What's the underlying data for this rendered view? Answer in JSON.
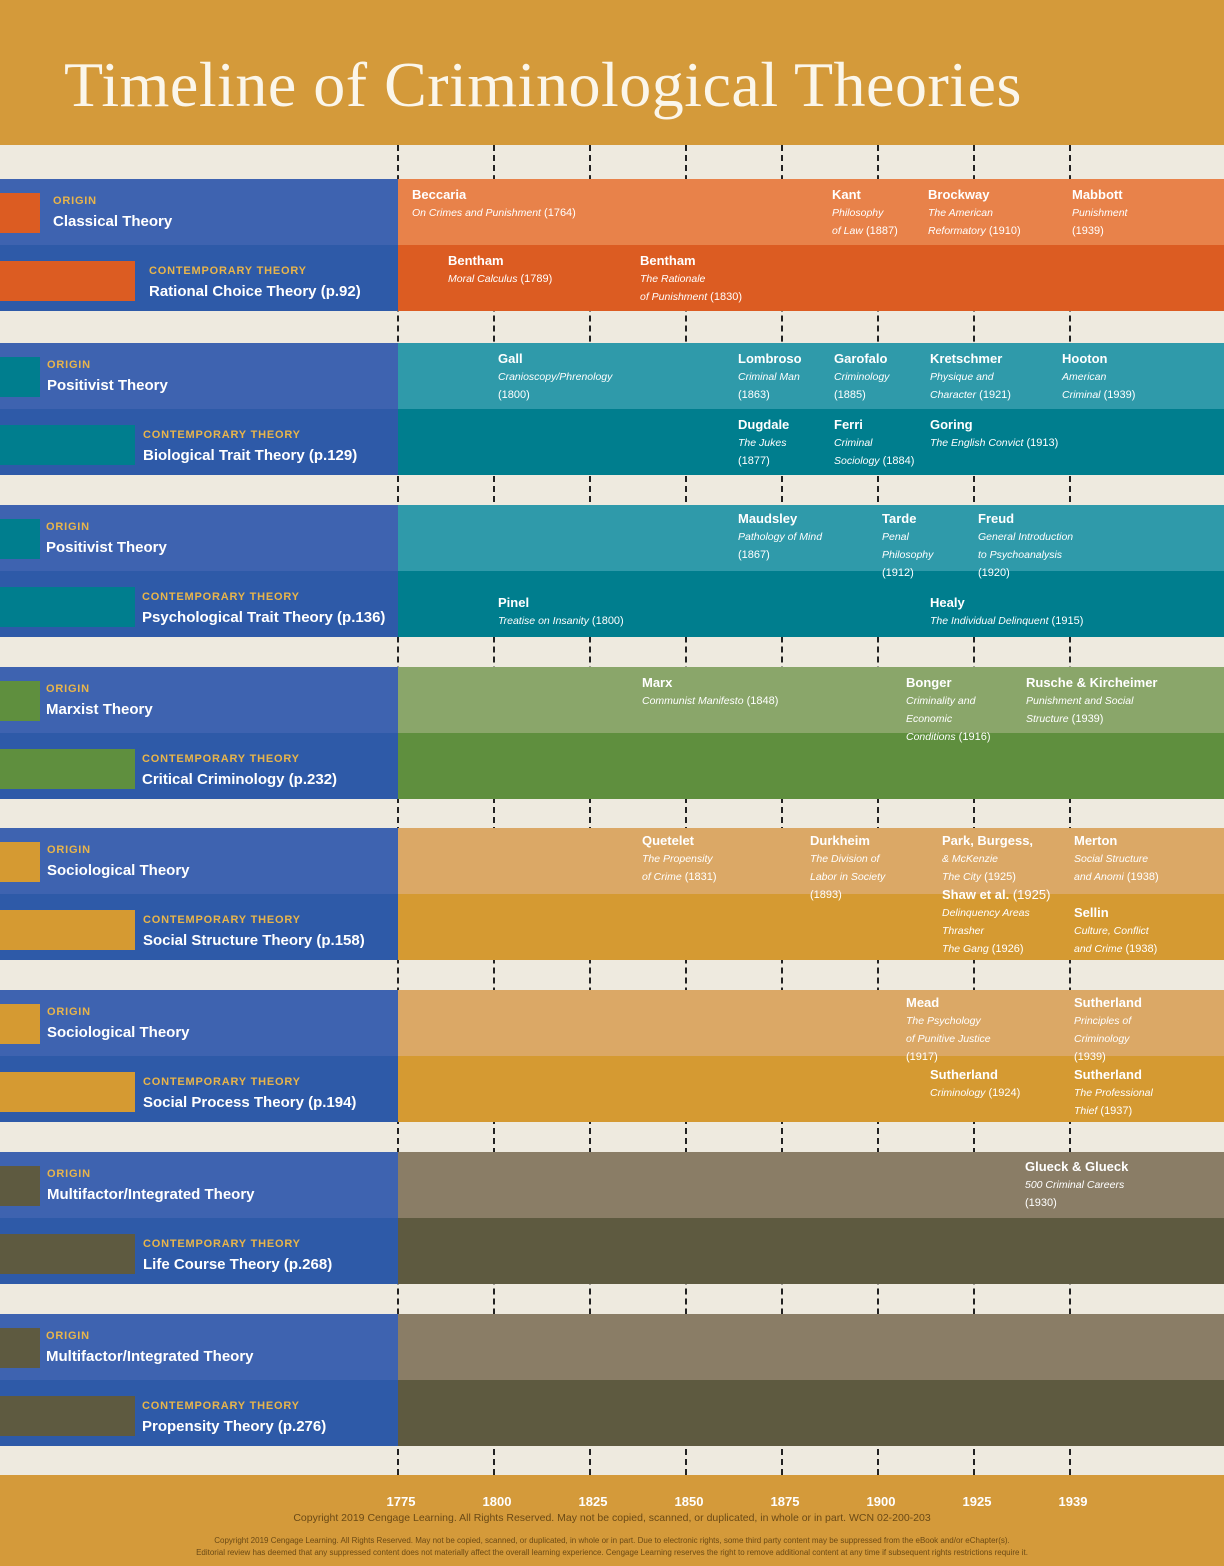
{
  "title": "Timeline of Criminological Theories",
  "axis_labels": [
    "1775",
    "1800",
    "1825",
    "1850",
    "1875",
    "1900",
    "1925",
    "1939"
  ],
  "labels": {
    "origin": "ORIGIN",
    "contemporary": "CONTEMPORARY THEORY"
  },
  "bands": [
    {
      "origin": "Classical Theory",
      "contemporary": "Rational Choice Theory (p.92)",
      "color_origin": "#e8824a",
      "color_contemporary": "#dc5c22",
      "swatch": "#dc5c22",
      "events": [
        {
          "row": "origin",
          "lines": [
            [
              "Beccaria"
            ],
            [
              "On Crimes and Punishment",
              " (1764)"
            ]
          ]
        },
        {
          "row": "origin",
          "lines": [
            [
              "Kant"
            ],
            [
              "Philosophy"
            ],
            [
              "of Law",
              " (1887)"
            ]
          ]
        },
        {
          "row": "origin",
          "lines": [
            [
              "Brockway"
            ],
            [
              "The American"
            ],
            [
              "Reformatory",
              " (1910)"
            ]
          ]
        },
        {
          "row": "origin",
          "lines": [
            [
              "Mabbott"
            ],
            [
              "Punishment"
            ],
            [
              "",
              " (1939)"
            ]
          ]
        },
        {
          "row": "contemporary",
          "lines": [
            [
              "Bentham"
            ],
            [
              "Moral Calculus",
              " (1789)"
            ]
          ]
        },
        {
          "row": "contemporary",
          "lines": [
            [
              "Bentham"
            ],
            [
              "The Rationale"
            ],
            [
              "of Punishment",
              " (1830)"
            ]
          ]
        }
      ]
    },
    {
      "origin": "Positivist Theory",
      "contemporary": "Biological Trait Theory (p.129)",
      "color_origin": "#2f9aaa",
      "color_contemporary": "#007e8e",
      "swatch": "#007e8e",
      "events": [
        {
          "row": "origin",
          "lines": [
            [
              "Gall"
            ],
            [
              "Cranioscopy/Phrenology"
            ],
            [
              "",
              " (1800)"
            ]
          ]
        },
        {
          "row": "origin",
          "lines": [
            [
              "Lombroso"
            ],
            [
              "Criminal Man"
            ],
            [
              "",
              " (1863)"
            ]
          ]
        },
        {
          "row": "origin",
          "lines": [
            [
              "Garofalo"
            ],
            [
              "Criminology"
            ],
            [
              "",
              " (1885)"
            ]
          ]
        },
        {
          "row": "origin",
          "lines": [
            [
              "Kretschmer"
            ],
            [
              "Physique and"
            ],
            [
              "Character",
              " (1921)"
            ]
          ]
        },
        {
          "row": "origin",
          "lines": [
            [
              "Hooton"
            ],
            [
              "American"
            ],
            [
              "Criminal",
              "   (1939)"
            ]
          ]
        },
        {
          "row": "contemporary",
          "lines": [
            [
              "Dugdale"
            ],
            [
              "The Jukes"
            ],
            [
              "",
              " (1877)"
            ]
          ]
        },
        {
          "row": "contemporary",
          "lines": [
            [
              "Ferri"
            ],
            [
              "Criminal"
            ],
            [
              "Sociology",
              " (1884)"
            ]
          ]
        },
        {
          "row": "contemporary",
          "lines": [
            [
              "Goring"
            ],
            [
              "The English Convict",
              "  (1913)"
            ]
          ]
        }
      ]
    },
    {
      "origin": "Positivist Theory",
      "contemporary": "Psychological Trait Theory (p.136)",
      "color_origin": "#2f9aaa",
      "color_contemporary": "#007e8e",
      "swatch": "#007e8e",
      "events": [
        {
          "row": "origin",
          "lines": [
            [
              "Maudsley"
            ],
            [
              "Pathology of Mind"
            ],
            [
              "",
              " (1867)"
            ]
          ]
        },
        {
          "row": "origin",
          "lines": [
            [
              "Tarde"
            ],
            [
              "Penal"
            ],
            [
              "Philosophy"
            ],
            [
              "",
              " (1912)"
            ]
          ]
        },
        {
          "row": "origin",
          "lines": [
            [
              "Freud"
            ],
            [
              "General Introduction"
            ],
            [
              "to Psychoanalysis"
            ],
            [
              "",
              " (1920)"
            ]
          ]
        },
        {
          "row": "contemporary",
          "lines": [
            [
              "Pinel"
            ],
            [
              "Treatise on Insanity",
              " (1800)"
            ]
          ]
        },
        {
          "row": "contemporary",
          "lines": [
            [
              "Healy"
            ],
            [
              "The Individual Delinquent",
              " (1915)"
            ]
          ]
        }
      ]
    },
    {
      "origin": "Marxist Theory",
      "contemporary": "Critical Criminology (p.232)",
      "color_origin": "#8aa66a",
      "color_contemporary": "#5f8f3e",
      "swatch": "#5f8f3e",
      "events": [
        {
          "row": "origin",
          "lines": [
            [
              "Marx"
            ],
            [
              "Communist Manifesto",
              " (1848)"
            ]
          ]
        },
        {
          "row": "origin",
          "lines": [
            [
              "Bonger"
            ],
            [
              "Criminality and"
            ],
            [
              "Economic"
            ],
            [
              "Conditions",
              " (1916)"
            ]
          ]
        },
        {
          "row": "origin",
          "lines": [
            [
              "Rusche & Kircheimer"
            ],
            [
              "Punishment and Social"
            ],
            [
              "Structure",
              " (1939)"
            ]
          ]
        }
      ]
    },
    {
      "origin": "Sociological Theory",
      "contemporary": "Social Structure Theory (p.158)",
      "color_origin": "#dba866",
      "color_contemporary": "#d59a32",
      "swatch": "#d59a32",
      "events": [
        {
          "row": "origin",
          "lines": [
            [
              "Quetelet"
            ],
            [
              "The Propensity"
            ],
            [
              "of Crime",
              " (1831)"
            ]
          ]
        },
        {
          "row": "origin",
          "lines": [
            [
              "Durkheim"
            ],
            [
              "The Division of"
            ],
            [
              "Labor in Society"
            ],
            [
              "",
              " (1893)"
            ]
          ]
        },
        {
          "row": "origin",
          "lines": [
            [
              "Park, Burgess,"
            ],
            [
              "& McKenzie"
            ],
            [
              "The City",
              " (1925)"
            ]
          ]
        },
        {
          "row": "origin",
          "lines": [
            [
              "Merton"
            ],
            [
              "Social Structure"
            ],
            [
              "and Anomi",
              " (1938)"
            ]
          ]
        },
        {
          "row": "contemporary",
          "lines": [
            [
              "Shaw et al.",
              " (1925)"
            ],
            [
              "Delinquency Areas"
            ],
            [
              "Thrasher"
            ],
            [
              "The Gang",
              " (1926)"
            ]
          ]
        },
        {
          "row": "contemporary",
          "lines": [
            [
              "Sellin"
            ],
            [
              "Culture, Conflict"
            ],
            [
              "and Crime",
              " (1938)"
            ]
          ]
        }
      ]
    },
    {
      "origin": "Sociological Theory",
      "contemporary": "Social Process Theory (p.194)",
      "color_origin": "#dba866",
      "color_contemporary": "#d59a32",
      "swatch": "#d59a32",
      "events": [
        {
          "row": "origin",
          "lines": [
            [
              "Mead"
            ],
            [
              "The Psychology"
            ],
            [
              "of Punitive Justice"
            ],
            [
              "",
              " (1917)"
            ]
          ]
        },
        {
          "row": "origin",
          "lines": [
            [
              "Sutherland"
            ],
            [
              "Principles of"
            ],
            [
              "Criminology"
            ],
            [
              "",
              " (1939)"
            ]
          ]
        },
        {
          "row": "contemporary",
          "lines": [
            [
              "Sutherland"
            ],
            [
              "Criminology",
              " (1924)"
            ]
          ]
        },
        {
          "row": "contemporary",
          "lines": [
            [
              "Sutherland"
            ],
            [
              "The Professional"
            ],
            [
              "Thief",
              " (1937)"
            ]
          ]
        }
      ]
    },
    {
      "origin": "Multifactor/Integrated Theory",
      "contemporary": "Life Course Theory (p.268)",
      "color_origin": "#8a7d66",
      "color_contemporary": "#5e5a40",
      "swatch": "#5e5a40",
      "events": [
        {
          "row": "origin",
          "lines": [
            [
              "Glueck & Glueck"
            ],
            [
              "500 Criminal Careers"
            ],
            [
              "",
              " (1930)"
            ]
          ]
        }
      ]
    },
    {
      "origin": "Multifactor/Integrated Theory",
      "contemporary": "Propensity Theory (p.276)",
      "color_origin": "#8a7d66",
      "color_contemporary": "#5e5a40",
      "swatch": "#5e5a40",
      "events": []
    }
  ],
  "copyright_main": "Copyright 2019 Cengage Learning. All Rights Reserved. May not be copied, scanned, or duplicated, in whole or in part.  WCN 02-200-203",
  "copyright_fine_1": "Copyright 2019 Cengage Learning. All Rights Reserved. May not be copied, scanned, or duplicated, in whole or in part. Due to electronic rights, some third party content may be suppressed from the eBook and/or eChapter(s).",
  "copyright_fine_2": "Editorial review has deemed that any suppressed content does not materially affect the overall learning experience. Cengage Learning reserves the right to remove additional content at any time if subsequent rights restrictions require it."
}
